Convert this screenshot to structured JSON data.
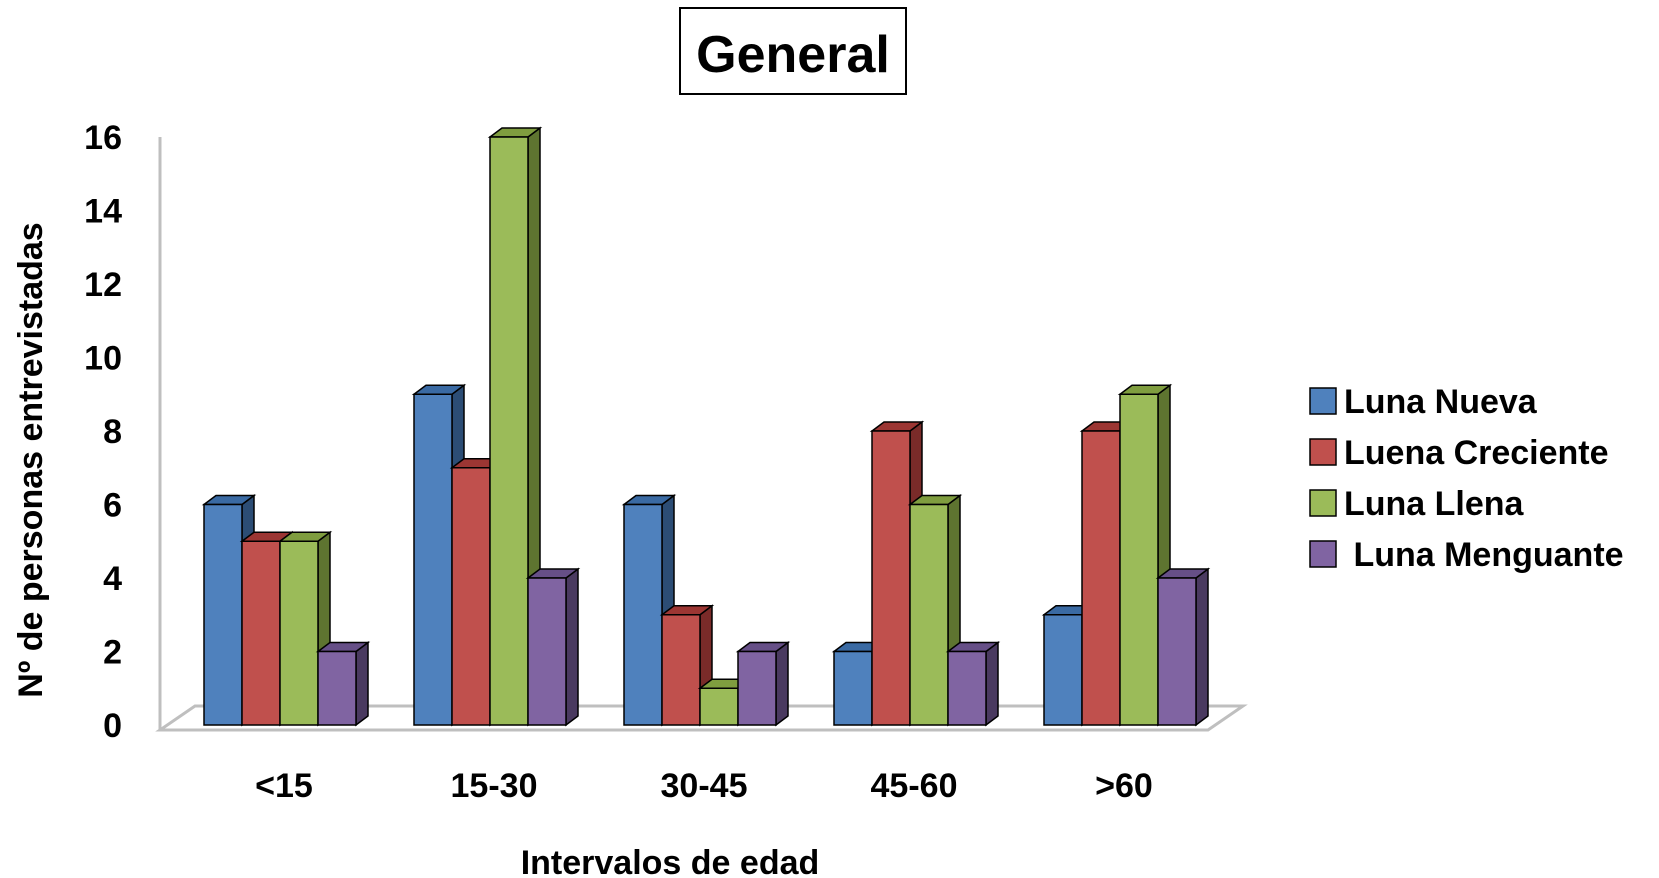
{
  "chart_data": {
    "type": "bar",
    "title": "General",
    "xlabel": "Intervalos de edad",
    "ylabel": "Nº de personas entrevistadas",
    "categories": [
      "<15",
      "15-30",
      "30-45",
      "45-60",
      ">60"
    ],
    "ylim": [
      0,
      16
    ],
    "yticks": [
      "0",
      "2",
      "4",
      "6",
      "8",
      "10",
      "12",
      "14",
      "16"
    ],
    "series": [
      {
        "name": "Luna Nueva",
        "values": [
          6,
          9,
          6,
          2,
          3
        ]
      },
      {
        "name": "Luena Creciente",
        "values": [
          5,
          7,
          3,
          8,
          8
        ]
      },
      {
        "name": "Luna Llena",
        "values": [
          5,
          16,
          1,
          6,
          9
        ]
      },
      {
        "name": " Luna Menguante",
        "values": [
          2,
          4,
          2,
          2,
          4
        ]
      }
    ],
    "legend_position": "right",
    "grid": false
  },
  "colors": {
    "series": [
      {
        "front": "#4f81bd",
        "side": "#2c4d75",
        "top": "#3a6aa3"
      },
      {
        "front": "#c0504d",
        "side": "#7a2b29",
        "top": "#9c3633"
      },
      {
        "front": "#9bbb59",
        "side": "#5e7430",
        "top": "#7f9d3f"
      },
      {
        "front": "#8064a2",
        "side": "#4a3a60",
        "top": "#664f87"
      }
    ],
    "axis": "#bfbfbf"
  }
}
